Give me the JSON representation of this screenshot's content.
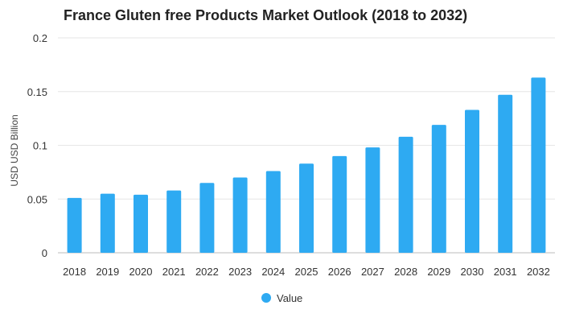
{
  "chart_data": {
    "type": "bar",
    "title": "France Gluten free Products Market Outlook (2018 to 2032)",
    "xlabel": "",
    "ylabel": "USD USD Billion",
    "categories": [
      "2018",
      "2019",
      "2020",
      "2021",
      "2022",
      "2023",
      "2024",
      "2025",
      "2026",
      "2027",
      "2028",
      "2029",
      "2030",
      "2031",
      "2032"
    ],
    "series": [
      {
        "name": "Value",
        "color": "#2eaaf2",
        "values": [
          0.051,
          0.055,
          0.054,
          0.058,
          0.065,
          0.07,
          0.076,
          0.083,
          0.09,
          0.098,
          0.108,
          0.119,
          0.133,
          0.147,
          0.163
        ]
      }
    ],
    "ylim": [
      0,
      0.2
    ],
    "yticks": [
      0,
      0.05,
      0.1,
      0.15,
      0.2
    ],
    "ytick_labels": [
      "0",
      "0.05",
      "0.1",
      "0.15",
      "0.2"
    ],
    "grid": true,
    "legend_position": "bottom-center"
  }
}
